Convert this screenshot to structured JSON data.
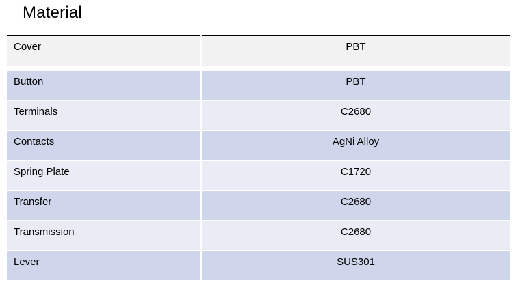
{
  "title": "Material",
  "colors": {
    "band_gray": "#F2F2F2",
    "band_dark": "#CFD5EA",
    "band_light": "#E9EBF5",
    "table_top_border": "#000000",
    "text": "#000000",
    "background": "#FFFFFF"
  },
  "table": {
    "rows": [
      {
        "part": "Cover",
        "material": "PBT",
        "band": "gray"
      },
      {
        "part": "Button",
        "material": "PBT",
        "band": "dark"
      },
      {
        "part": "Terminals",
        "material": "C2680",
        "band": "light"
      },
      {
        "part": "Contacts",
        "material": "AgNi Alloy",
        "band": "dark"
      },
      {
        "part": "Spring Plate",
        "material": "C1720",
        "band": "light"
      },
      {
        "part": "Transfer",
        "material": "C2680",
        "band": "dark"
      },
      {
        "part": "Transmission",
        "material": "C2680",
        "band": "light"
      },
      {
        "part": "Lever",
        "material": "SUS301",
        "band": "dark"
      }
    ]
  }
}
